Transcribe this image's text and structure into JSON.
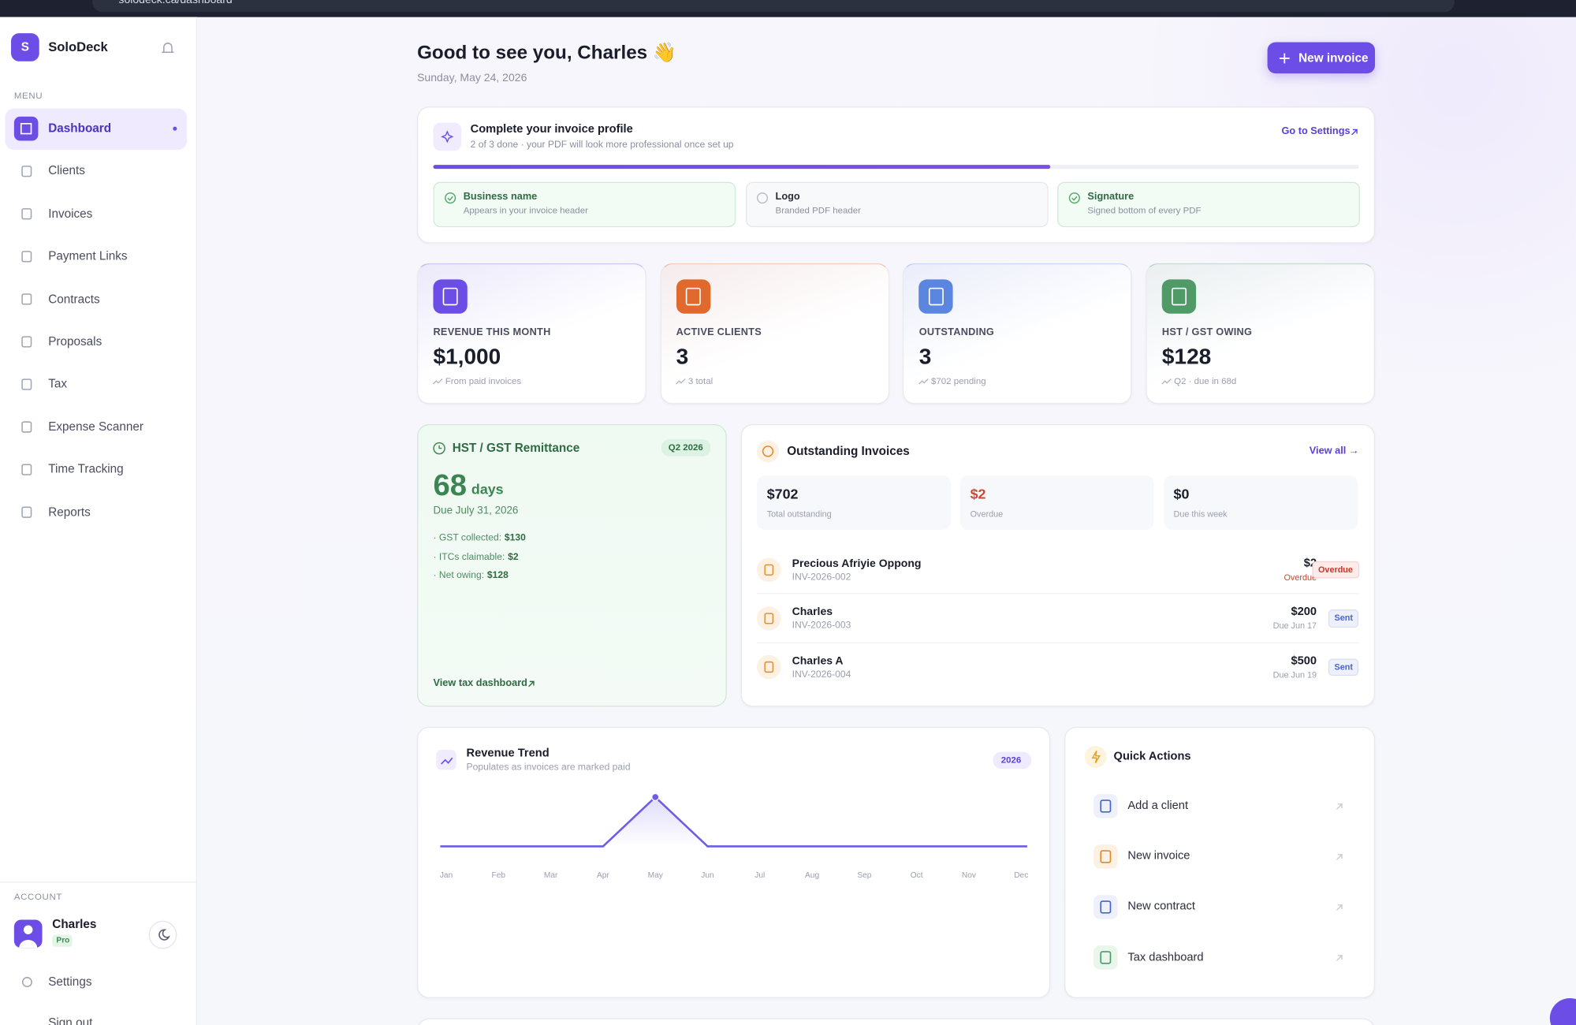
{
  "browser": {
    "url": "solodeck.ca/dashboard"
  },
  "sidebar": {
    "brand_initial": "S",
    "brand": "SoloDeck",
    "menu_heading": "MENU",
    "menu": [
      "Dashboard",
      "Clients",
      "Invoices",
      "Payment Links",
      "Contracts",
      "Proposals",
      "Tax",
      "Expense Scanner",
      "Time Tracking",
      "Reports"
    ],
    "active_index": 0,
    "account_heading": "ACCOUNT",
    "user_name": "Charles",
    "plan": "Pro",
    "settings": "Settings",
    "sign_out": "Sign out"
  },
  "header": {
    "greeting": "Good to see you, Charles 👋",
    "date": "Sunday, May 24, 2026",
    "new_invoice": "New invoice"
  },
  "profile": {
    "title": "Complete your invoice profile",
    "subtitle": "2 of 3 done · your PDF will look more professional once set up",
    "link": "Go to Settings",
    "steps": [
      {
        "name": "Business name",
        "desc": "Appears in your invoice header",
        "done": true
      },
      {
        "name": "Logo",
        "desc": "Branded PDF header",
        "done": false
      },
      {
        "name": "Signature",
        "desc": "Signed bottom of every PDF",
        "done": true
      }
    ]
  },
  "stats": [
    {
      "label": "REVENUE THIS MONTH",
      "value": "$1,000",
      "note": "From paid invoices",
      "color": "#6c4ee6"
    },
    {
      "label": "ACTIVE CLIENTS",
      "value": "3",
      "note": "3 total",
      "color": "#e0692e"
    },
    {
      "label": "OUTSTANDING",
      "value": "3",
      "note": "$702 pending",
      "color": "#5b86e0"
    },
    {
      "label": "HST / GST OWING",
      "value": "$128",
      "note": "Q2 · due in 68d",
      "color": "#4f9a66"
    }
  ],
  "hst": {
    "title": "HST / GST Remittance",
    "badge": "Q2 2026",
    "days": "68",
    "days_unit": "days",
    "due": "Due July 31, 2026",
    "lines": [
      {
        "label": "· GST collected:",
        "value": "$130"
      },
      {
        "label": "· ITCs claimable:",
        "value": "$2"
      },
      {
        "label": "· Net owing:",
        "value": "$128"
      }
    ],
    "link": "View tax dashboard"
  },
  "outstanding": {
    "title": "Outstanding Invoices",
    "view_all": "View all →",
    "summary": [
      {
        "value": "$702",
        "label": "Total outstanding",
        "color": "#1a1d2b"
      },
      {
        "value": "$2",
        "label": "Overdue",
        "color": "#d2462b"
      },
      {
        "value": "$0",
        "label": "Due this week",
        "color": "#1a1d2b"
      }
    ],
    "invoices": [
      {
        "client": "Precious Afriyie Oppong",
        "number": "INV-2026-002",
        "amount": "$2",
        "due": "Overdue",
        "status": "Overdue",
        "due_color": "#d2462b",
        "status_color": "#c9362a",
        "status_bg": "#fdecea"
      },
      {
        "client": "Charles",
        "number": "INV-2026-003",
        "amount": "$200",
        "due": "Due Jun 17",
        "status": "Sent",
        "due_color": "#9a9eae",
        "status_color": "#4a63c9",
        "status_bg": "#eef1fc"
      },
      {
        "client": "Charles A",
        "number": "INV-2026-004",
        "amount": "$500",
        "due": "Due Jun 19",
        "status": "Sent",
        "due_color": "#9a9eae",
        "status_color": "#4a63c9",
        "status_bg": "#eef1fc"
      }
    ]
  },
  "revenue_trend": {
    "title": "Revenue Trend",
    "subtitle": "Populates as invoices are marked paid",
    "badge": "2026",
    "chart_data": {
      "type": "line",
      "categories": [
        "Jan",
        "Feb",
        "Mar",
        "Apr",
        "May",
        "Jun",
        "Jul",
        "Aug",
        "Sep",
        "Oct",
        "Nov",
        "Dec"
      ],
      "values": [
        0,
        0,
        0,
        0,
        1000,
        0,
        0,
        0,
        0,
        0,
        0,
        0
      ],
      "color": "#6c5ce7"
    }
  },
  "quick_actions": {
    "title": "Quick Actions",
    "items": [
      "Add a client",
      "New invoice",
      "New contract",
      "Tax dashboard"
    ]
  }
}
